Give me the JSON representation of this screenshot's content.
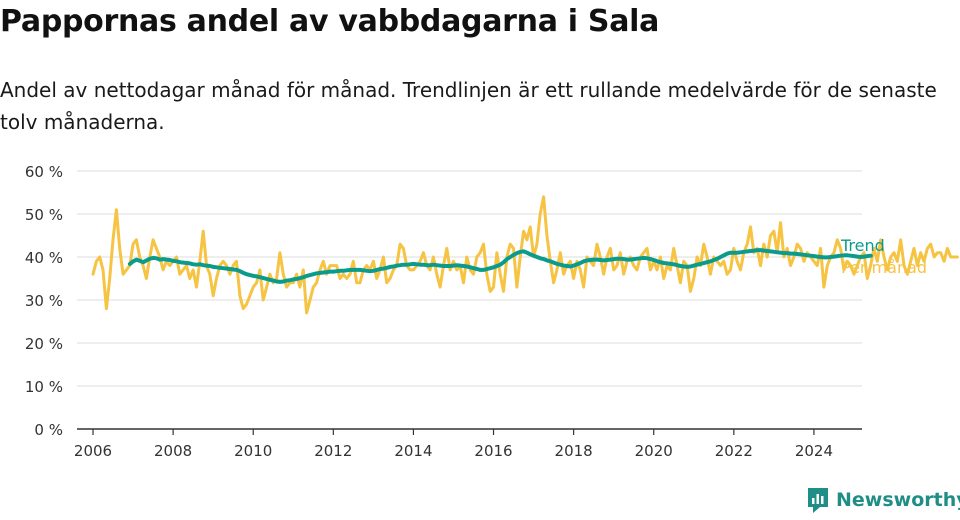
{
  "title": "Pappornas andel av vabbdagarna i Sala",
  "subtitle": "Andel av nettodagar månad för månad. Trendlinjen är ett rullande medelvärde för de senaste tolv månaderna.",
  "brand": {
    "name": "Newsworthy"
  },
  "colors": {
    "monthly": "#f6c343",
    "trend": "#0a9b8c",
    "grid": "#dddddd",
    "axis": "#333333",
    "brand": "#1f8e86"
  },
  "chart_data": {
    "type": "line",
    "xlim": [
      2005.6,
      2025.2
    ],
    "ylim": [
      0,
      60
    ],
    "grid": true,
    "y_ticks": [
      0,
      10,
      20,
      30,
      40,
      50,
      60
    ],
    "y_tick_labels": [
      "0 %",
      "10 %",
      "20 %",
      "30 %",
      "40 %",
      "50 %",
      "60 %"
    ],
    "x_ticks": [
      2006,
      2008,
      2010,
      2012,
      2014,
      2016,
      2018,
      2020,
      2022,
      2024
    ],
    "x_tick_labels": [
      "2006",
      "2008",
      "2010",
      "2012",
      "2014",
      "2016",
      "2018",
      "2020",
      "2022",
      "2024"
    ],
    "series": [
      {
        "name": "Per månad",
        "x_start": 2006.0,
        "step": 0.08333,
        "values": [
          36,
          39,
          40,
          37,
          28,
          35,
          44,
          51,
          42,
          36,
          37,
          38,
          43,
          44,
          40,
          38,
          35,
          40,
          44,
          42,
          40,
          37,
          39,
          38,
          39,
          40,
          36,
          37,
          38,
          35,
          37,
          33,
          39,
          46,
          38,
          36,
          31,
          35,
          38,
          39,
          38,
          36,
          38,
          39,
          31,
          28,
          29,
          31,
          33,
          34,
          37,
          30,
          33,
          36,
          34,
          35,
          41,
          36,
          33,
          34,
          34,
          36,
          33,
          37,
          27,
          30,
          33,
          34,
          37,
          39,
          36,
          38,
          38,
          38,
          35,
          36,
          35,
          36,
          39,
          34,
          34,
          37,
          38,
          37,
          39,
          35,
          37,
          40,
          34,
          35,
          37,
          38,
          43,
          42,
          38,
          37,
          37,
          38,
          39,
          41,
          38,
          37,
          40,
          36,
          33,
          38,
          42,
          37,
          39,
          37,
          38,
          34,
          40,
          37,
          36,
          40,
          41,
          43,
          36,
          32,
          33,
          41,
          36,
          32,
          40,
          43,
          42,
          33,
          40,
          46,
          44,
          47,
          40,
          43,
          50,
          54,
          45,
          39,
          34,
          37,
          41,
          36,
          38,
          39,
          35,
          39,
          37,
          33,
          40,
          39,
          38,
          43,
          40,
          36,
          40,
          42,
          37,
          38,
          41,
          36,
          39,
          40,
          38,
          37,
          40,
          41,
          42,
          37,
          39,
          37,
          40,
          35,
          38,
          37,
          42,
          38,
          34,
          39,
          38,
          32,
          35,
          40,
          38,
          43,
          40,
          36,
          40,
          39,
          38,
          39,
          36,
          37,
          42,
          39,
          37,
          41,
          43,
          47,
          41,
          42,
          38,
          43,
          40,
          45,
          46,
          41,
          48,
          40,
          42,
          38,
          40,
          43,
          42,
          39,
          41,
          40,
          39,
          38,
          42,
          33,
          38,
          40,
          41,
          44,
          42,
          37,
          39,
          38,
          36,
          38,
          40,
          41,
          35,
          38,
          42,
          39,
          44,
          40,
          37,
          40,
          41,
          39,
          44,
          38,
          36,
          39,
          42,
          38,
          41,
          39,
          42,
          43,
          40,
          41,
          41,
          39,
          42,
          40,
          40,
          40
        ]
      },
      {
        "name": "Trend",
        "x_start": 2006.92,
        "step": 0.08333,
        "values": [
          38.4,
          39.0,
          39.4,
          39.1,
          38.8,
          39.2,
          39.6,
          39.8,
          39.7,
          39.4,
          39.5,
          39.4,
          39.3,
          39.1,
          39.0,
          38.8,
          38.7,
          38.6,
          38.5,
          38.3,
          38.2,
          38.3,
          38.1,
          38.0,
          37.9,
          37.7,
          37.6,
          37.5,
          37.4,
          37.3,
          37.2,
          37.1,
          37.0,
          36.7,
          36.3,
          36.0,
          35.8,
          35.6,
          35.5,
          35.3,
          35.1,
          34.9,
          34.7,
          34.5,
          34.3,
          34.2,
          34.3,
          34.5,
          34.6,
          34.8,
          34.9,
          35.1,
          35.3,
          35.6,
          35.8,
          36.0,
          36.2,
          36.3,
          36.4,
          36.5,
          36.6,
          36.6,
          36.7,
          36.8,
          36.8,
          36.9,
          37.0,
          37.0,
          37.0,
          37.0,
          36.9,
          36.8,
          36.7,
          36.8,
          37.0,
          37.2,
          37.3,
          37.5,
          37.7,
          37.8,
          38.0,
          38.1,
          38.2,
          38.2,
          38.3,
          38.4,
          38.3,
          38.2,
          38.2,
          38.1,
          38.1,
          38.2,
          38.1,
          38.0,
          37.9,
          37.9,
          37.9,
          38.0,
          38.1,
          38.0,
          37.9,
          37.8,
          37.6,
          37.4,
          37.2,
          37.0,
          37.0,
          37.2,
          37.4,
          37.6,
          37.9,
          38.2,
          38.8,
          39.5,
          40.0,
          40.5,
          40.9,
          41.2,
          41.3,
          41.0,
          40.6,
          40.3,
          40.0,
          39.7,
          39.5,
          39.2,
          39.0,
          38.7,
          38.4,
          38.2,
          38.0,
          37.9,
          37.8,
          38.0,
          38.3,
          38.6,
          39.0,
          39.2,
          39.3,
          39.4,
          39.4,
          39.3,
          39.2,
          39.3,
          39.4,
          39.5,
          39.6,
          39.6,
          39.5,
          39.4,
          39.4,
          39.5,
          39.6,
          39.7,
          39.8,
          39.7,
          39.5,
          39.3,
          39.0,
          38.8,
          38.6,
          38.5,
          38.4,
          38.3,
          38.1,
          37.9,
          37.8,
          37.7,
          37.8,
          38.0,
          38.2,
          38.4,
          38.6,
          38.8,
          39.0,
          39.3,
          39.6,
          40.0,
          40.4,
          40.8,
          41.0,
          41.0,
          41.0,
          41.1,
          41.2,
          41.3,
          41.4,
          41.5,
          41.6,
          41.6,
          41.5,
          41.4,
          41.3,
          41.2,
          41.1,
          41.0,
          40.9,
          40.9,
          40.8,
          40.8,
          40.7,
          40.6,
          40.5,
          40.4,
          40.3,
          40.2,
          40.1,
          40.0,
          39.9,
          39.9,
          40.0,
          40.1,
          40.2,
          40.3,
          40.4,
          40.4,
          40.3,
          40.2,
          40.1,
          40.0,
          40.1,
          40.2,
          40.3
        ]
      }
    ],
    "legend": [
      {
        "name": "Trend",
        "color": "#0a9b8c"
      },
      {
        "name": "Per månad",
        "color": "#f6c343"
      }
    ]
  }
}
